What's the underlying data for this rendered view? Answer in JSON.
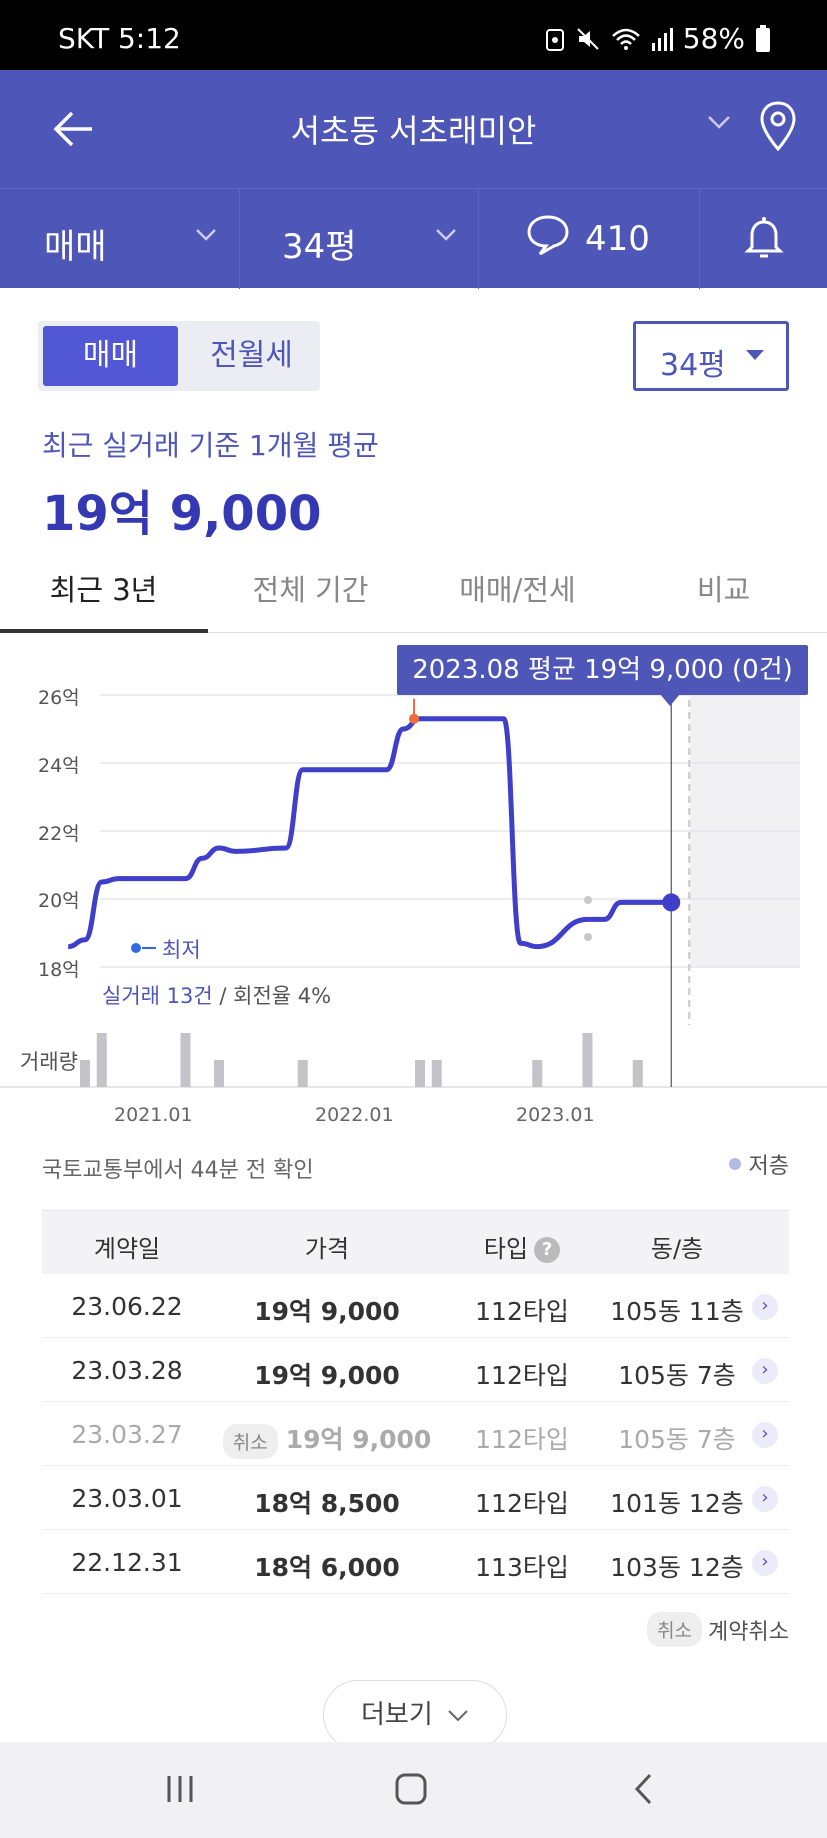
{
  "status_bar": {
    "carrier_time": "SKT 5:12",
    "battery": "58%"
  },
  "header": {
    "title": "서초동 서초래미안",
    "icons": [
      "back-arrow-icon",
      "chevron-down-icon",
      "location-pin-icon"
    ]
  },
  "filters": {
    "deal_type": "매매",
    "size": "34평",
    "comments_count": "410",
    "icons": [
      "chevron-down-icon",
      "chat-bubble-icon",
      "bell-icon"
    ]
  },
  "segment": {
    "active": "매매",
    "inactive": "전월세"
  },
  "size_select": {
    "value": "34평"
  },
  "average": {
    "caption": "최근 실거래 기준 1개월 평균",
    "price": "19억 9,000"
  },
  "tabs": [
    "최근 3년",
    "전체 기간",
    "매매/전세",
    "비교"
  ],
  "chart_data": {
    "type": "line",
    "tooltip": "2023.08 평균 19억 9,000 (0건)",
    "y_ticks": [
      "26억",
      "24억",
      "22억",
      "20억",
      "18억"
    ],
    "ylim": [
      18,
      26
    ],
    "x_ticks": [
      "2021.01",
      "2022.01",
      "2023.01"
    ],
    "series": [
      {
        "x": [
          "2020.08",
          "2020.09",
          "2020.10",
          "2020.11",
          "2021.03",
          "2021.04",
          "2021.05",
          "2021.06",
          "2021.09",
          "2021.10",
          "2021.11",
          "2022.03",
          "2022.04",
          "2022.05",
          "2022.10",
          "2022.11",
          "2022.12",
          "2023.03",
          "2023.04",
          "2023.05",
          "2023.06",
          "2023.08"
        ],
        "values": [
          18.6,
          18.8,
          20.5,
          20.6,
          20.6,
          21.2,
          21.5,
          21.4,
          21.5,
          23.8,
          23.8,
          23.8,
          25.0,
          25.3,
          25.3,
          18.7,
          18.6,
          19.4,
          19.4,
          19.9,
          19.9,
          19.9
        ]
      }
    ],
    "min_label": "최저",
    "deal_count_label": "실거래 13건",
    "turnover_label": "/ 회전율 4%",
    "volume_label": "거래량",
    "volume": {
      "x": [
        "2020.09",
        "2020.10",
        "2021.03",
        "2021.05",
        "2021.10",
        "2022.05",
        "2022.06",
        "2022.12",
        "2023.03",
        "2023.06"
      ],
      "values": [
        1,
        2,
        2,
        1,
        1,
        1,
        1,
        1,
        2,
        1
      ]
    },
    "accent_color": "#4e56b7",
    "line_color": "#3f3fc9",
    "max_marker_color": "#f26b3a"
  },
  "source_note": "국토교통부에서 44분 전 확인",
  "legend_low": "저층",
  "table": {
    "headers": [
      "계약일",
      "가격",
      "타입",
      "동/층"
    ],
    "help_icon": "?",
    "rows": [
      {
        "date": "23.06.22",
        "price": "19억 9,000",
        "type": "112타입",
        "unit": "105동 11층",
        "cancelled": false
      },
      {
        "date": "23.03.28",
        "price": "19억 9,000",
        "type": "112타입",
        "unit": "105동 7층",
        "cancelled": false
      },
      {
        "date": "23.03.27",
        "price": "19억 9,000",
        "type": "112타입",
        "unit": "105동 7층",
        "cancelled": true,
        "badge": "취소"
      },
      {
        "date": "23.03.01",
        "price": "18억 8,500",
        "type": "112타입",
        "unit": "101동 12층",
        "cancelled": false
      },
      {
        "date": "22.12.31",
        "price": "18억 6,000",
        "type": "113타입",
        "unit": "103동 12층",
        "cancelled": false
      }
    ]
  },
  "cancel_legend": {
    "badge": "취소",
    "label": "계약취소"
  },
  "more_button": "더보기",
  "nav_icons": [
    "recent-apps-icon",
    "home-icon",
    "back-icon"
  ]
}
